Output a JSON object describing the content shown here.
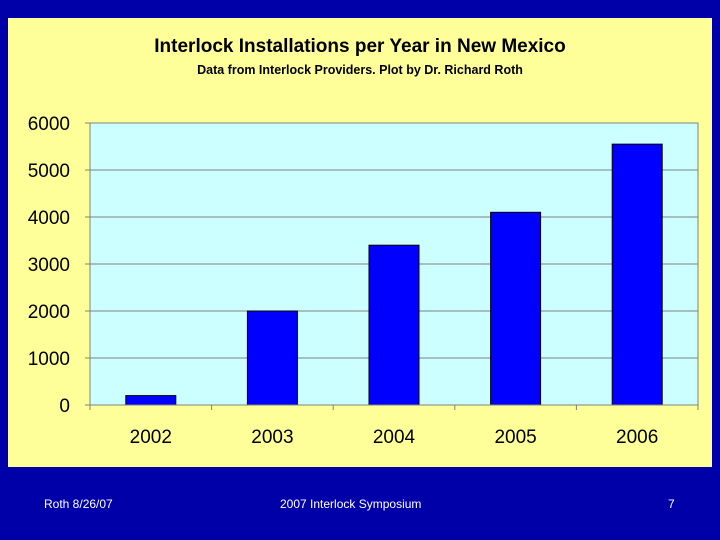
{
  "chart_data": {
    "type": "bar",
    "title": "Interlock Installations per Year in New Mexico",
    "subtitle": "Data from Interlock Providers. Plot by Dr. Richard Roth",
    "categories": [
      "2002",
      "2003",
      "2004",
      "2005",
      "2006"
    ],
    "values": [
      200,
      2000,
      3400,
      4100,
      5550
    ],
    "ylim": [
      0,
      6000
    ],
    "yticks": [
      "0",
      "1000",
      "2000",
      "3000",
      "4000",
      "5000",
      "6000"
    ],
    "grid": true,
    "bar_color": "#0000ff",
    "plot_background": "#ccffff"
  },
  "footer": {
    "left": "Roth 8/26/07",
    "center": "2007 Interlock Symposium",
    "right": "7"
  },
  "colors": {
    "slide_background": "#0000a8",
    "chart_area": "#ffff99"
  }
}
